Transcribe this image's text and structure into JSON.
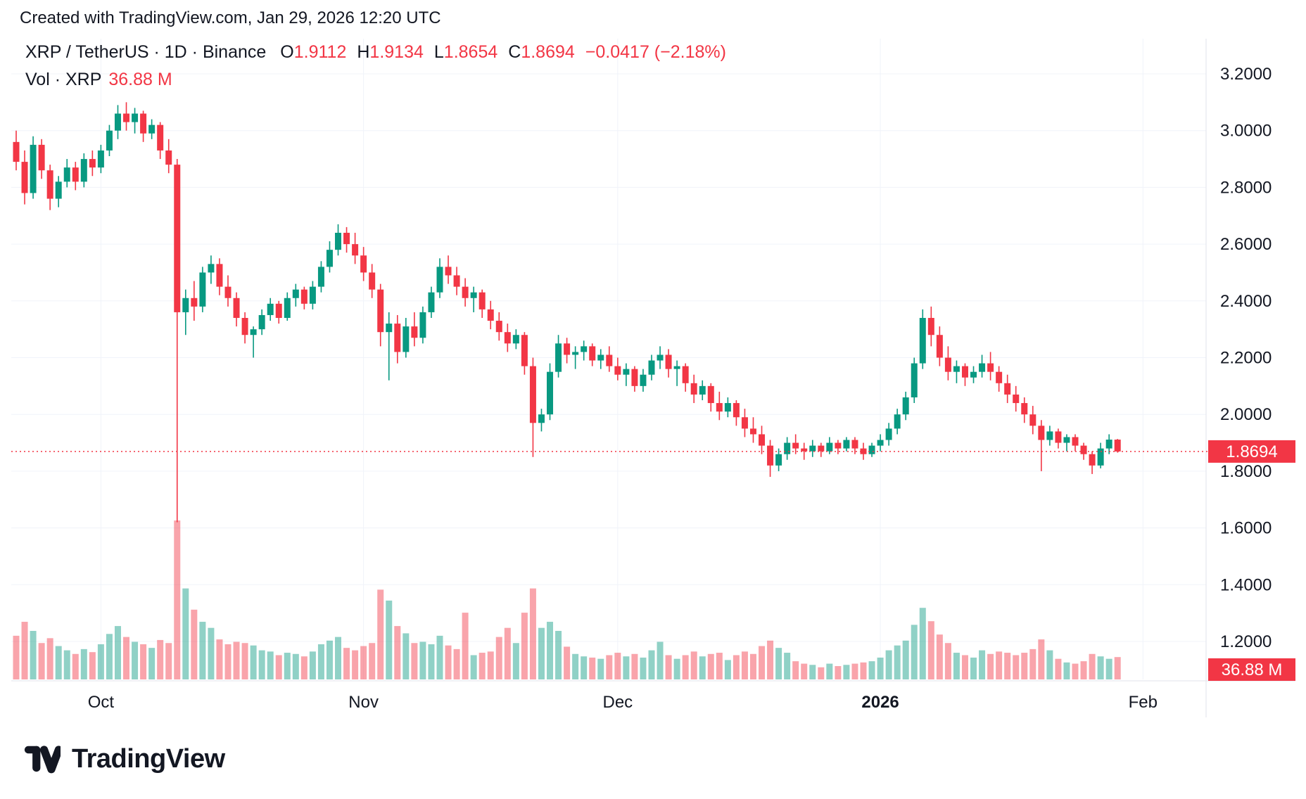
{
  "attribution": "Created with TradingView.com, Jan 29, 2026 12:20 UTC",
  "header": {
    "symbol": "XRP / TetherUS · 1D · Binance",
    "ohlc": [
      {
        "label": "O",
        "value": "1.9112"
      },
      {
        "label": "H",
        "value": "1.9134"
      },
      {
        "label": "L",
        "value": "1.8654"
      },
      {
        "label": "C",
        "value": "1.8694"
      }
    ],
    "change": "−0.0417 (−2.18%)",
    "vol_label": "Vol · XRP",
    "vol_value": "36.88 M"
  },
  "logo": {
    "text": "TradingView"
  },
  "colors": {
    "up": "#089981",
    "down": "#F23645",
    "vol_up": "rgba(8,153,129,0.45)",
    "vol_down": "rgba(242,54,69,0.45)",
    "grid": "#F0F3FA",
    "border": "#E0E3EB",
    "axis_text": "#131722",
    "badge_bg": "#F23645",
    "badge_text": "#FFFFFF",
    "accent_red": "#F23645"
  },
  "chart_data": {
    "type": "candlestick",
    "title": "XRP / TetherUS · 1D · Binance",
    "subtitle": "Daily candles with volume, late Sep 2025 through Jan 29, 2026",
    "grid": true,
    "last_bar": {
      "open": 1.9112,
      "high": 1.9134,
      "low": 1.8654,
      "close": 1.8694,
      "change": "−0.0417",
      "change_pct": "−2.18%",
      "volume_label": "36.88 M"
    },
    "y_axis": {
      "side": "right",
      "range": [
        1.2,
        3.2
      ],
      "ticks": [
        {
          "label": "3.2000",
          "value": 3.2
        },
        {
          "label": "3.0000",
          "value": 3.0
        },
        {
          "label": "2.8000",
          "value": 2.8
        },
        {
          "label": "2.6000",
          "value": 2.6
        },
        {
          "label": "2.4000",
          "value": 2.4
        },
        {
          "label": "2.2000",
          "value": 2.2
        },
        {
          "label": "2.0000",
          "value": 2.0
        },
        {
          "label": "1.8000",
          "value": 1.8
        },
        {
          "label": "1.6000",
          "value": 1.6
        },
        {
          "label": "1.4000",
          "value": 1.4
        },
        {
          "label": "1.2000",
          "value": 1.2
        }
      ],
      "last_price": 1.8694,
      "last_price_label": "1.8694",
      "volume_badge": "36.88 M"
    },
    "x_axis": {
      "ticks": [
        {
          "label": "Oct",
          "day": 10,
          "bold": false
        },
        {
          "label": "Nov",
          "day": 41,
          "bold": false
        },
        {
          "label": "Dec",
          "day": 71,
          "bold": false
        },
        {
          "label": "2026",
          "day": 102,
          "bold": true
        },
        {
          "label": "Feb",
          "day": 133,
          "bold": false
        }
      ]
    },
    "candles": {
      "fields": [
        "open",
        "high",
        "low",
        "close",
        "volume_millions"
      ],
      "values": [
        [
          2.96,
          3.0,
          2.86,
          2.89,
          72
        ],
        [
          2.89,
          2.93,
          2.74,
          2.78,
          95
        ],
        [
          2.78,
          2.98,
          2.76,
          2.95,
          80
        ],
        [
          2.95,
          2.97,
          2.83,
          2.86,
          60
        ],
        [
          2.86,
          2.88,
          2.72,
          2.76,
          68
        ],
        [
          2.76,
          2.84,
          2.73,
          2.82,
          55
        ],
        [
          2.82,
          2.9,
          2.8,
          2.87,
          48
        ],
        [
          2.87,
          2.89,
          2.79,
          2.82,
          42
        ],
        [
          2.82,
          2.92,
          2.8,
          2.9,
          50
        ],
        [
          2.9,
          2.93,
          2.84,
          2.87,
          45
        ],
        [
          2.87,
          2.95,
          2.85,
          2.93,
          58
        ],
        [
          2.93,
          3.02,
          2.91,
          3.0,
          75
        ],
        [
          3.0,
          3.09,
          2.97,
          3.06,
          88
        ],
        [
          3.06,
          3.1,
          3.0,
          3.03,
          70
        ],
        [
          3.03,
          3.08,
          2.99,
          3.06,
          62
        ],
        [
          3.06,
          3.07,
          2.96,
          2.99,
          58
        ],
        [
          2.99,
          3.04,
          2.97,
          3.02,
          52
        ],
        [
          3.02,
          3.03,
          2.9,
          2.93,
          65
        ],
        [
          2.93,
          2.97,
          2.85,
          2.88,
          60
        ],
        [
          2.88,
          2.9,
          1.62,
          2.36,
          262
        ],
        [
          2.36,
          2.44,
          2.28,
          2.41,
          150
        ],
        [
          2.41,
          2.47,
          2.33,
          2.38,
          115
        ],
        [
          2.38,
          2.52,
          2.36,
          2.5,
          95
        ],
        [
          2.5,
          2.56,
          2.46,
          2.53,
          85
        ],
        [
          2.53,
          2.55,
          2.42,
          2.45,
          66
        ],
        [
          2.45,
          2.49,
          2.38,
          2.41,
          58
        ],
        [
          2.41,
          2.43,
          2.31,
          2.34,
          62
        ],
        [
          2.34,
          2.36,
          2.25,
          2.28,
          60
        ],
        [
          2.28,
          2.31,
          2.2,
          2.3,
          56
        ],
        [
          2.3,
          2.37,
          2.28,
          2.35,
          48
        ],
        [
          2.35,
          2.41,
          2.33,
          2.39,
          46
        ],
        [
          2.39,
          2.4,
          2.32,
          2.34,
          40
        ],
        [
          2.34,
          2.43,
          2.33,
          2.41,
          44
        ],
        [
          2.41,
          2.46,
          2.38,
          2.44,
          42
        ],
        [
          2.44,
          2.45,
          2.37,
          2.39,
          38
        ],
        [
          2.39,
          2.47,
          2.37,
          2.45,
          46
        ],
        [
          2.45,
          2.54,
          2.43,
          2.52,
          58
        ],
        [
          2.52,
          2.61,
          2.5,
          2.58,
          64
        ],
        [
          2.58,
          2.67,
          2.56,
          2.64,
          70
        ],
        [
          2.64,
          2.66,
          2.57,
          2.6,
          52
        ],
        [
          2.6,
          2.64,
          2.53,
          2.56,
          48
        ],
        [
          2.56,
          2.59,
          2.47,
          2.5,
          55
        ],
        [
          2.5,
          2.53,
          2.41,
          2.44,
          60
        ],
        [
          2.44,
          2.46,
          2.24,
          2.29,
          148
        ],
        [
          2.29,
          2.36,
          2.12,
          2.32,
          130
        ],
        [
          2.32,
          2.35,
          2.18,
          2.22,
          88
        ],
        [
          2.22,
          2.34,
          2.2,
          2.31,
          76
        ],
        [
          2.31,
          2.36,
          2.24,
          2.27,
          60
        ],
        [
          2.27,
          2.38,
          2.25,
          2.36,
          62
        ],
        [
          2.36,
          2.45,
          2.34,
          2.43,
          58
        ],
        [
          2.43,
          2.55,
          2.41,
          2.52,
          72
        ],
        [
          2.52,
          2.56,
          2.46,
          2.49,
          56
        ],
        [
          2.49,
          2.52,
          2.42,
          2.45,
          50
        ],
        [
          2.45,
          2.48,
          2.38,
          2.41,
          110
        ],
        [
          2.41,
          2.45,
          2.36,
          2.43,
          40
        ],
        [
          2.43,
          2.44,
          2.34,
          2.37,
          44
        ],
        [
          2.37,
          2.4,
          2.3,
          2.33,
          46
        ],
        [
          2.33,
          2.36,
          2.26,
          2.29,
          70
        ],
        [
          2.29,
          2.32,
          2.22,
          2.25,
          85
        ],
        [
          2.25,
          2.3,
          2.23,
          2.28,
          60
        ],
        [
          2.28,
          2.29,
          2.14,
          2.17,
          110
        ],
        [
          2.17,
          2.2,
          1.85,
          1.97,
          150
        ],
        [
          1.97,
          2.02,
          1.94,
          2.0,
          85
        ],
        [
          2.0,
          2.18,
          1.98,
          2.15,
          95
        ],
        [
          2.15,
          2.28,
          2.13,
          2.25,
          80
        ],
        [
          2.25,
          2.27,
          2.18,
          2.21,
          54
        ],
        [
          2.21,
          2.24,
          2.16,
          2.22,
          42
        ],
        [
          2.22,
          2.26,
          2.19,
          2.24,
          38
        ],
        [
          2.24,
          2.25,
          2.17,
          2.19,
          36
        ],
        [
          2.19,
          2.23,
          2.16,
          2.21,
          34
        ],
        [
          2.21,
          2.24,
          2.15,
          2.17,
          40
        ],
        [
          2.17,
          2.2,
          2.12,
          2.14,
          44
        ],
        [
          2.14,
          2.18,
          2.1,
          2.16,
          38
        ],
        [
          2.16,
          2.17,
          2.08,
          2.1,
          42
        ],
        [
          2.1,
          2.16,
          2.08,
          2.14,
          36
        ],
        [
          2.14,
          2.21,
          2.12,
          2.19,
          48
        ],
        [
          2.19,
          2.24,
          2.16,
          2.21,
          62
        ],
        [
          2.21,
          2.23,
          2.13,
          2.16,
          40
        ],
        [
          2.16,
          2.19,
          2.1,
          2.17,
          34
        ],
        [
          2.17,
          2.18,
          2.08,
          2.11,
          40
        ],
        [
          2.11,
          2.14,
          2.04,
          2.07,
          46
        ],
        [
          2.07,
          2.12,
          2.05,
          2.1,
          38
        ],
        [
          2.1,
          2.11,
          2.01,
          2.04,
          42
        ],
        [
          2.04,
          2.08,
          1.98,
          2.01,
          44
        ],
        [
          2.01,
          2.06,
          1.99,
          2.04,
          32
        ],
        [
          2.04,
          2.05,
          1.96,
          1.99,
          40
        ],
        [
          1.99,
          2.02,
          1.92,
          1.95,
          46
        ],
        [
          1.95,
          1.99,
          1.9,
          1.93,
          42
        ],
        [
          1.93,
          1.96,
          1.86,
          1.89,
          55
        ],
        [
          1.89,
          1.91,
          1.78,
          1.82,
          64
        ],
        [
          1.82,
          1.88,
          1.8,
          1.86,
          52
        ],
        [
          1.86,
          1.92,
          1.84,
          1.9,
          44
        ],
        [
          1.9,
          1.93,
          1.86,
          1.88,
          30
        ],
        [
          1.88,
          1.9,
          1.84,
          1.87,
          26
        ],
        [
          1.87,
          1.91,
          1.85,
          1.89,
          24
        ],
        [
          1.89,
          1.9,
          1.85,
          1.87,
          20
        ],
        [
          1.87,
          1.92,
          1.86,
          1.9,
          26
        ],
        [
          1.9,
          1.91,
          1.86,
          1.88,
          22
        ],
        [
          1.88,
          1.92,
          1.87,
          1.91,
          24
        ],
        [
          1.91,
          1.92,
          1.86,
          1.88,
          26
        ],
        [
          1.88,
          1.9,
          1.84,
          1.86,
          28
        ],
        [
          1.86,
          1.9,
          1.85,
          1.89,
          30
        ],
        [
          1.89,
          1.93,
          1.87,
          1.91,
          36
        ],
        [
          1.91,
          1.97,
          1.89,
          1.95,
          48
        ],
        [
          1.95,
          2.02,
          1.93,
          2.0,
          56
        ],
        [
          2.0,
          2.08,
          1.98,
          2.06,
          64
        ],
        [
          2.06,
          2.2,
          2.04,
          2.18,
          90
        ],
        [
          2.18,
          2.37,
          2.16,
          2.34,
          118
        ],
        [
          2.34,
          2.38,
          2.24,
          2.28,
          96
        ],
        [
          2.28,
          2.31,
          2.17,
          2.2,
          74
        ],
        [
          2.2,
          2.24,
          2.12,
          2.15,
          60
        ],
        [
          2.15,
          2.19,
          2.11,
          2.17,
          44
        ],
        [
          2.17,
          2.18,
          2.1,
          2.13,
          40
        ],
        [
          2.13,
          2.17,
          2.11,
          2.15,
          36
        ],
        [
          2.15,
          2.21,
          2.13,
          2.18,
          48
        ],
        [
          2.18,
          2.22,
          2.12,
          2.15,
          42
        ],
        [
          2.15,
          2.17,
          2.08,
          2.11,
          46
        ],
        [
          2.11,
          2.14,
          2.04,
          2.07,
          44
        ],
        [
          2.07,
          2.1,
          2.01,
          2.04,
          40
        ],
        [
          2.04,
          2.06,
          1.97,
          2.0,
          44
        ],
        [
          2.0,
          2.03,
          1.93,
          1.96,
          50
        ],
        [
          1.96,
          1.98,
          1.8,
          1.91,
          66
        ],
        [
          1.91,
          1.96,
          1.89,
          1.94,
          48
        ],
        [
          1.94,
          1.95,
          1.88,
          1.9,
          34
        ],
        [
          1.9,
          1.93,
          1.87,
          1.92,
          28
        ],
        [
          1.92,
          1.93,
          1.87,
          1.89,
          26
        ],
        [
          1.89,
          1.9,
          1.84,
          1.86,
          30
        ],
        [
          1.86,
          1.87,
          1.79,
          1.82,
          42
        ],
        [
          1.82,
          1.9,
          1.81,
          1.88,
          38
        ],
        [
          1.88,
          1.93,
          1.86,
          1.9112,
          34
        ],
        [
          1.9112,
          1.9134,
          1.8654,
          1.8694,
          36.88
        ]
      ]
    }
  }
}
